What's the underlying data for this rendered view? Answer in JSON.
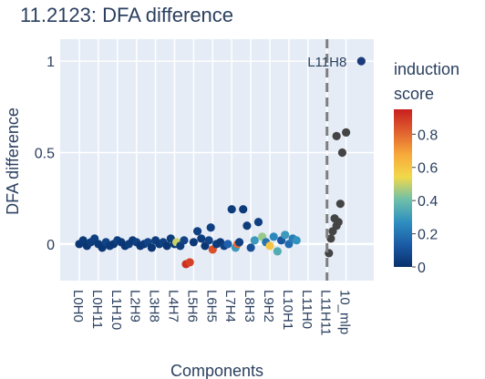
{
  "chart_data": {
    "type": "scatter",
    "title": "11.2123: DFA difference",
    "xlabel": "Components",
    "ylabel": "DFA difference",
    "ylim": [
      -0.2,
      1.12
    ],
    "yticks": [
      0,
      0.5,
      1
    ],
    "ytick_labels": [
      "0",
      "0.5",
      "1"
    ],
    "grid": true,
    "categories": [
      "L0H0",
      "L0H11",
      "L1H10",
      "L2H9",
      "L3H8",
      "L4H7",
      "L5H6",
      "L6H5",
      "L7H4",
      "L8H3",
      "L9H2",
      "L10H1",
      "L11H0",
      "L11H11",
      "10_mlp"
    ],
    "vline": {
      "category": "L11H11",
      "style": "dashed",
      "color": "#7f7f7f"
    },
    "annotations": [
      {
        "text": "L11H8",
        "x_index": 14.8,
        "y": 1.0
      }
    ],
    "colorbar": {
      "title_lines": [
        "induction",
        "score"
      ],
      "range": [
        0,
        0.95
      ],
      "ticks": [
        0,
        0.2,
        0.4,
        0.6,
        0.8
      ],
      "tick_labels": [
        "0",
        "0.2",
        "0.4",
        "0.6",
        "0.8"
      ],
      "colors": [
        "#08306b",
        "#1c5ba6",
        "#2f8fc0",
        "#6fc0a8",
        "#f2d94a",
        "#f7a93a",
        "#e0612f",
        "#c81f1f"
      ]
    },
    "series": [
      {
        "color_scale": "induction score",
        "points": [
          {
            "x_index": 0.0,
            "y": 0.0,
            "score": 0.02
          },
          {
            "x_index": 0.2,
            "y": 0.02,
            "score": 0.03
          },
          {
            "x_index": 0.4,
            "y": -0.01,
            "score": 0.02
          },
          {
            "x_index": 0.6,
            "y": 0.01,
            "score": 0.04
          },
          {
            "x_index": 0.8,
            "y": 0.03,
            "score": 0.05
          },
          {
            "x_index": 1.0,
            "y": 0.0,
            "score": 0.03
          },
          {
            "x_index": 1.2,
            "y": -0.02,
            "score": 0.02
          },
          {
            "x_index": 1.4,
            "y": 0.01,
            "score": 0.06
          },
          {
            "x_index": 1.6,
            "y": -0.01,
            "score": 0.03
          },
          {
            "x_index": 1.8,
            "y": 0.0,
            "score": 0.02
          },
          {
            "x_index": 2.0,
            "y": 0.02,
            "score": 0.05
          },
          {
            "x_index": 2.2,
            "y": 0.01,
            "score": 0.03
          },
          {
            "x_index": 2.4,
            "y": -0.01,
            "score": 0.02
          },
          {
            "x_index": 2.6,
            "y": 0.0,
            "score": 0.04
          },
          {
            "x_index": 2.8,
            "y": 0.02,
            "score": 0.03
          },
          {
            "x_index": 3.0,
            "y": 0.01,
            "score": 0.05
          },
          {
            "x_index": 3.2,
            "y": -0.01,
            "score": 0.02
          },
          {
            "x_index": 3.4,
            "y": 0.0,
            "score": 0.03
          },
          {
            "x_index": 3.6,
            "y": 0.01,
            "score": 0.06
          },
          {
            "x_index": 3.8,
            "y": -0.02,
            "score": 0.02
          },
          {
            "x_index": 4.0,
            "y": 0.02,
            "score": 0.04
          },
          {
            "x_index": 4.2,
            "y": 0.0,
            "score": 0.03
          },
          {
            "x_index": 4.4,
            "y": 0.01,
            "score": 0.05
          },
          {
            "x_index": 4.6,
            "y": -0.01,
            "score": 0.02
          },
          {
            "x_index": 4.8,
            "y": 0.03,
            "score": 0.04
          },
          {
            "x_index": 5.0,
            "y": 0.0,
            "score": 0.03
          },
          {
            "x_index": 5.1,
            "y": 0.01,
            "score": 0.5
          },
          {
            "x_index": 5.3,
            "y": -0.01,
            "score": 0.04
          },
          {
            "x_index": 5.5,
            "y": 0.02,
            "score": 0.06
          },
          {
            "x_index": 5.6,
            "y": -0.11,
            "score": 0.92
          },
          {
            "x_index": 5.8,
            "y": -0.1,
            "score": 0.88
          },
          {
            "x_index": 6.0,
            "y": 0.01,
            "score": 0.03
          },
          {
            "x_index": 6.2,
            "y": 0.07,
            "score": 0.05
          },
          {
            "x_index": 6.4,
            "y": 0.03,
            "score": 0.04
          },
          {
            "x_index": 6.6,
            "y": -0.01,
            "score": 0.02
          },
          {
            "x_index": 6.8,
            "y": 0.02,
            "score": 0.06
          },
          {
            "x_index": 6.9,
            "y": 0.09,
            "score": 0.05
          },
          {
            "x_index": 7.0,
            "y": -0.03,
            "score": 0.85
          },
          {
            "x_index": 7.2,
            "y": 0.0,
            "score": 0.04
          },
          {
            "x_index": 7.4,
            "y": 0.01,
            "score": 0.03
          },
          {
            "x_index": 7.6,
            "y": -0.01,
            "score": 0.05
          },
          {
            "x_index": 7.8,
            "y": 0.0,
            "score": 0.15
          },
          {
            "x_index": 8.0,
            "y": 0.19,
            "score": 0.04
          },
          {
            "x_index": 8.2,
            "y": -0.02,
            "score": 0.3
          },
          {
            "x_index": 8.3,
            "y": 0.0,
            "score": 0.8
          },
          {
            "x_index": 8.4,
            "y": 0.01,
            "score": 0.05
          },
          {
            "x_index": 8.6,
            "y": 0.19,
            "score": 0.03
          },
          {
            "x_index": 8.8,
            "y": 0.1,
            "score": 0.04
          },
          {
            "x_index": 9.0,
            "y": -0.02,
            "score": 0.1
          },
          {
            "x_index": 9.2,
            "y": 0.02,
            "score": 0.3
          },
          {
            "x_index": 9.4,
            "y": 0.12,
            "score": 0.05
          },
          {
            "x_index": 9.6,
            "y": 0.04,
            "score": 0.45
          },
          {
            "x_index": 9.8,
            "y": 0.01,
            "score": 0.2
          },
          {
            "x_index": 10.0,
            "y": -0.01,
            "score": 0.6
          },
          {
            "x_index": 10.2,
            "y": 0.04,
            "score": 0.25
          },
          {
            "x_index": 10.4,
            "y": -0.04,
            "score": 0.35
          },
          {
            "x_index": 10.6,
            "y": 0.02,
            "score": 0.12
          },
          {
            "x_index": 10.8,
            "y": 0.05,
            "score": 0.3
          },
          {
            "x_index": 11.0,
            "y": 0.0,
            "score": 0.18
          },
          {
            "x_index": 11.2,
            "y": 0.03,
            "score": 0.22
          },
          {
            "x_index": 11.4,
            "y": 0.02,
            "score": 0.28
          }
        ]
      },
      {
        "color": "#444444",
        "points": [
          {
            "x_index": 13.1,
            "y": -0.05
          },
          {
            "x_index": 13.2,
            "y": 0.03
          },
          {
            "x_index": 13.3,
            "y": 0.07
          },
          {
            "x_index": 13.4,
            "y": 0.14
          },
          {
            "x_index": 13.5,
            "y": 0.1
          },
          {
            "x_index": 13.6,
            "y": 0.12
          },
          {
            "x_index": 13.7,
            "y": 0.22
          },
          {
            "x_index": 13.5,
            "y": 0.59
          },
          {
            "x_index": 13.8,
            "y": 0.5
          },
          {
            "x_index": 14.0,
            "y": 0.61
          }
        ]
      },
      {
        "color": "#1a3a7a",
        "points": [
          {
            "x_index": 14.8,
            "y": 1.0
          }
        ]
      }
    ]
  }
}
